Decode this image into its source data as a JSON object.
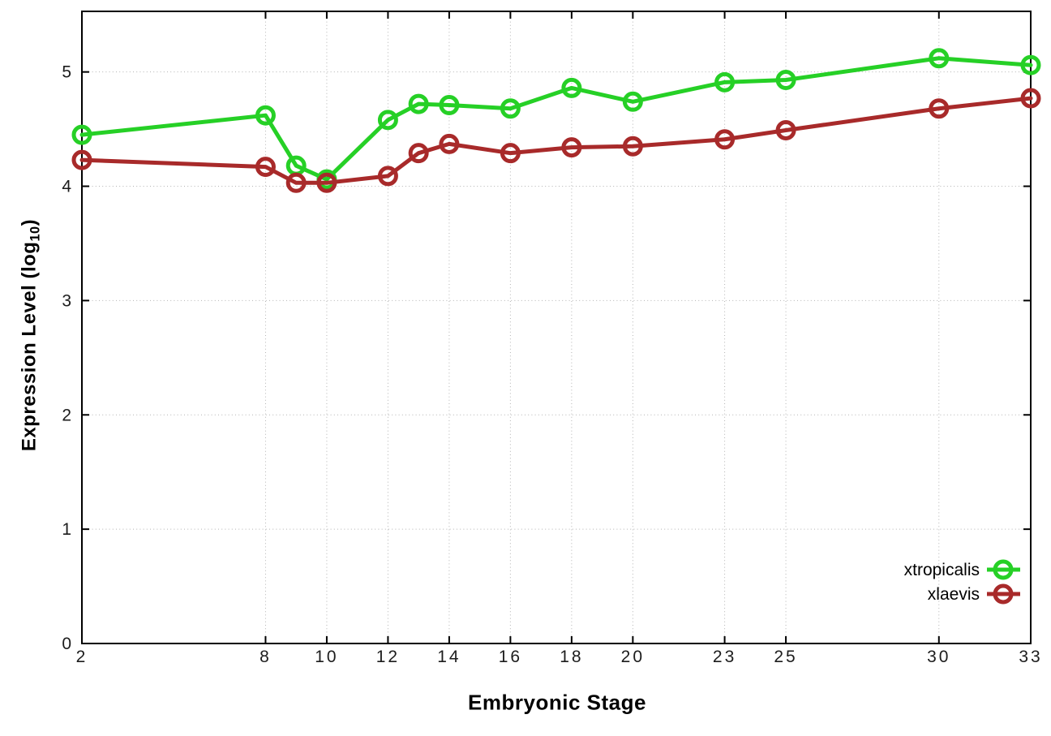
{
  "chart_data": {
    "type": "line",
    "title": "",
    "xlabel": "Embryonic Stage",
    "ylabel": {
      "pre": "Expression Level (log",
      "sub": "10",
      "post": ")"
    },
    "x": [
      2,
      8,
      9,
      10,
      12,
      13,
      14,
      16,
      18,
      20,
      23,
      25,
      30,
      33
    ],
    "series": [
      {
        "name": "xtropicalis",
        "color": "#26d026",
        "values": [
          4.45,
          4.62,
          4.18,
          4.06,
          4.58,
          4.72,
          4.71,
          4.68,
          4.86,
          4.74,
          4.91,
          4.93,
          5.12,
          5.06
        ]
      },
      {
        "name": "xlaevis",
        "color": "#a82a2a",
        "values": [
          4.23,
          4.17,
          4.03,
          4.03,
          4.09,
          4.29,
          4.37,
          4.29,
          4.34,
          4.35,
          4.41,
          4.49,
          4.68,
          4.77
        ]
      }
    ],
    "xlim": [
      2,
      33
    ],
    "ylim": [
      0,
      5.53
    ],
    "xticks": [
      2,
      8,
      10,
      12,
      14,
      16,
      18,
      20,
      23,
      25,
      30,
      33
    ],
    "yticks": [
      0,
      1,
      2,
      3,
      4,
      5
    ],
    "grid": true,
    "legend_position": "inside-right-bottom",
    "marker": "open-circle"
  },
  "colors": {
    "background": "#ffffff",
    "border": "#000000",
    "grid": "#b3b3b3",
    "tick_text": "#1c1c1c",
    "legend_text": "#000000"
  }
}
